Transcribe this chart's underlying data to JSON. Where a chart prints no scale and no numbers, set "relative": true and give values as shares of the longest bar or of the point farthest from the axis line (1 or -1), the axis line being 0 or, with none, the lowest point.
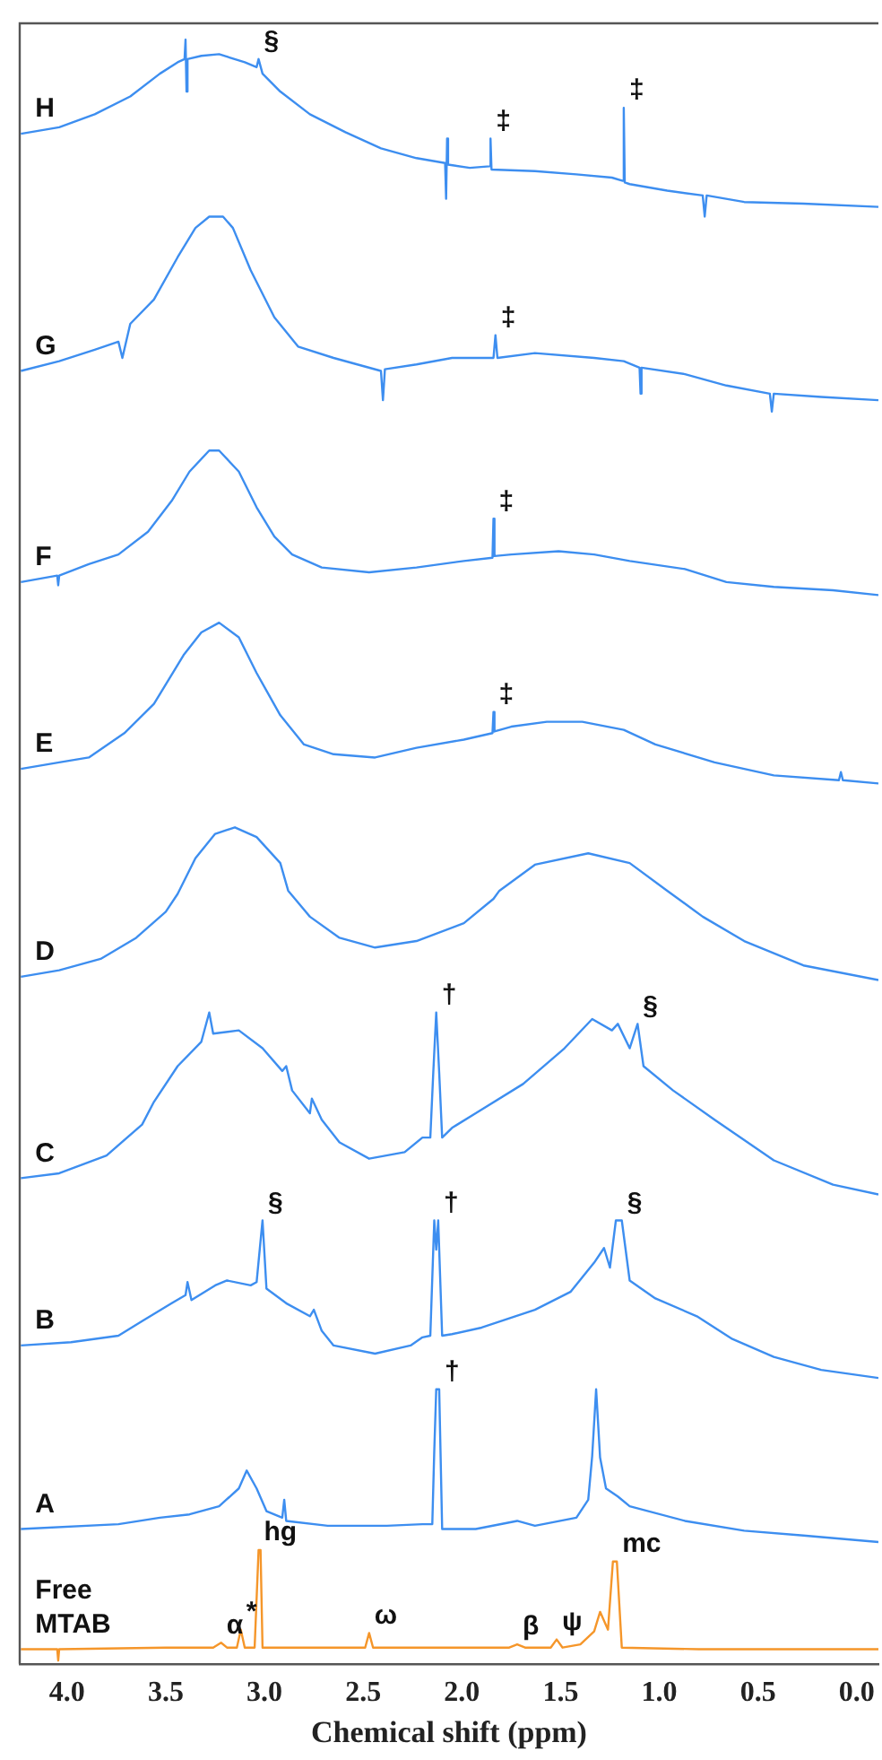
{
  "chart_data": {
    "type": "line",
    "relative": true,
    "xlabel": "Chemical shift (ppm)",
    "xlim": [
      4.24,
      -0.11
    ],
    "xticks": [
      {
        "value": 4,
        "label": "4.0"
      },
      {
        "value": 3.5,
        "label": "3.5"
      },
      {
        "value": 3,
        "label": "3.0"
      },
      {
        "value": 2.5,
        "label": "2.5"
      },
      {
        "value": 2,
        "label": "2.0"
      },
      {
        "value": 1.5,
        "label": "1.5"
      },
      {
        "value": 1,
        "label": "1.0"
      },
      {
        "value": 0.5,
        "label": "0.5"
      },
      {
        "value": 0,
        "label": "0.0"
      }
    ],
    "grid": false,
    "legend": false,
    "marker": "none",
    "line_style": "solid",
    "series": [
      {
        "name": "H",
        "color": "#3d8ef0",
        "x": [
          4.234,
          4.04,
          3.86,
          3.68,
          3.53,
          3.44,
          3.405,
          3.4,
          3.395,
          3.39,
          3.32,
          3.23,
          3.1,
          3.04,
          3.03,
          3.01,
          2.92,
          2.77,
          2.59,
          2.41,
          2.23,
          2.085,
          2.08,
          2.075,
          2.07,
          1.96,
          1.86,
          1.855,
          1.85,
          1.63,
          1.42,
          1.24,
          1.185,
          1.18,
          1.175,
          1.15,
          0.96,
          0.78,
          0.77,
          0.76,
          0.57,
          0.27,
          -0.11
        ],
        "values": [
          0.942,
          0.946,
          0.954,
          0.965,
          0.979,
          0.986,
          0.988,
          1.0,
          0.968,
          0.988,
          0.99,
          0.991,
          0.986,
          0.983,
          0.988,
          0.979,
          0.968,
          0.954,
          0.943,
          0.933,
          0.927,
          0.924,
          0.902,
          0.939,
          0.923,
          0.921,
          0.922,
          0.939,
          0.92,
          0.919,
          0.917,
          0.915,
          0.913,
          0.958,
          0.912,
          0.911,
          0.907,
          0.904,
          0.891,
          0.904,
          0.9,
          0.899,
          0.897
        ]
      },
      {
        "name": "G",
        "color": "#3d8ef0",
        "x": [
          4.234,
          4.04,
          3.86,
          3.74,
          3.72,
          3.68,
          3.56,
          3.44,
          3.35,
          3.28,
          3.21,
          3.16,
          3.07,
          2.95,
          2.83,
          2.65,
          2.41,
          2.4,
          2.39,
          2.23,
          2.05,
          1.84,
          1.83,
          1.82,
          1.63,
          1.33,
          1.18,
          1.1,
          1.095,
          1.09,
          0.87,
          0.66,
          0.44,
          0.43,
          0.42,
          0.18,
          -0.11
        ],
        "values": [
          0.796,
          0.802,
          0.809,
          0.814,
          0.804,
          0.825,
          0.84,
          0.866,
          0.884,
          0.891,
          0.891,
          0.884,
          0.858,
          0.829,
          0.811,
          0.804,
          0.796,
          0.778,
          0.797,
          0.8,
          0.804,
          0.804,
          0.818,
          0.804,
          0.807,
          0.804,
          0.802,
          0.798,
          0.782,
          0.798,
          0.794,
          0.787,
          0.782,
          0.771,
          0.782,
          0.78,
          0.778
        ]
      },
      {
        "name": "F",
        "color": "#3d8ef0",
        "x": [
          4.234,
          4.05,
          4.045,
          4.04,
          3.89,
          3.74,
          3.59,
          3.47,
          3.38,
          3.28,
          3.23,
          3.13,
          3.04,
          2.95,
          2.86,
          2.71,
          2.47,
          2.23,
          1.99,
          1.845,
          1.84,
          1.835,
          1.75,
          1.51,
          1.33,
          1.15,
          0.87,
          0.66,
          0.42,
          0.12,
          -0.11
        ],
        "values": [
          0.666,
          0.67,
          0.664,
          0.67,
          0.677,
          0.683,
          0.697,
          0.716,
          0.734,
          0.747,
          0.747,
          0.734,
          0.712,
          0.694,
          0.683,
          0.675,
          0.672,
          0.675,
          0.679,
          0.681,
          0.705,
          0.682,
          0.683,
          0.685,
          0.683,
          0.679,
          0.674,
          0.666,
          0.663,
          0.661,
          0.658
        ]
      },
      {
        "name": "E",
        "color": "#3d8ef0",
        "x": [
          4.234,
          4.04,
          3.89,
          3.71,
          3.56,
          3.41,
          3.32,
          3.23,
          3.13,
          3.04,
          2.92,
          2.8,
          2.65,
          2.44,
          2.23,
          1.99,
          1.845,
          1.84,
          1.835,
          1.75,
          1.57,
          1.39,
          1.18,
          1.02,
          0.72,
          0.42,
          0.09,
          0.08,
          0.07,
          -0.11
        ],
        "values": [
          0.551,
          0.555,
          0.558,
          0.573,
          0.591,
          0.621,
          0.635,
          0.641,
          0.632,
          0.61,
          0.584,
          0.566,
          0.56,
          0.558,
          0.564,
          0.569,
          0.573,
          0.586,
          0.574,
          0.577,
          0.58,
          0.58,
          0.575,
          0.566,
          0.555,
          0.547,
          0.544,
          0.549,
          0.544,
          0.542
        ]
      },
      {
        "name": "D",
        "color": "#3d8ef0",
        "x": [
          4.234,
          4.04,
          3.83,
          3.65,
          3.5,
          3.44,
          3.35,
          3.25,
          3.15,
          3.04,
          2.92,
          2.88,
          2.77,
          2.62,
          2.44,
          2.23,
          1.99,
          1.84,
          1.81,
          1.63,
          1.36,
          1.15,
          0.96,
          0.78,
          0.57,
          0.27,
          -0.11
        ],
        "values": [
          0.423,
          0.427,
          0.434,
          0.447,
          0.463,
          0.474,
          0.496,
          0.511,
          0.515,
          0.509,
          0.493,
          0.476,
          0.46,
          0.447,
          0.441,
          0.445,
          0.456,
          0.471,
          0.476,
          0.492,
          0.499,
          0.493,
          0.476,
          0.46,
          0.445,
          0.43,
          0.421
        ]
      },
      {
        "name": "C",
        "color": "#3d8ef0",
        "x": [
          4.234,
          4.04,
          3.8,
          3.62,
          3.56,
          3.44,
          3.32,
          3.28,
          3.26,
          3.13,
          3.01,
          2.91,
          2.89,
          2.86,
          2.77,
          2.76,
          2.71,
          2.62,
          2.47,
          2.29,
          2.2,
          2.16,
          2.145,
          2.13,
          2.115,
          2.1,
          2.05,
          1.93,
          1.69,
          1.48,
          1.34,
          1.24,
          1.21,
          1.15,
          1.11,
          1.08,
          0.93,
          0.72,
          0.42,
          0.12,
          -0.11
        ],
        "values": [
          0.299,
          0.302,
          0.313,
          0.332,
          0.346,
          0.368,
          0.383,
          0.401,
          0.388,
          0.39,
          0.379,
          0.365,
          0.368,
          0.353,
          0.339,
          0.348,
          0.335,
          0.321,
          0.311,
          0.315,
          0.324,
          0.324,
          0.364,
          0.401,
          0.364,
          0.324,
          0.33,
          0.339,
          0.357,
          0.379,
          0.397,
          0.39,
          0.394,
          0.379,
          0.394,
          0.368,
          0.353,
          0.335,
          0.31,
          0.295,
          0.289
        ]
      },
      {
        "name": "B",
        "color": "#3d8ef0",
        "x": [
          4.234,
          3.98,
          3.74,
          3.62,
          3.47,
          3.4,
          3.39,
          3.37,
          3.25,
          3.19,
          3.07,
          3.04,
          3.01,
          2.99,
          2.89,
          2.77,
          2.75,
          2.71,
          2.65,
          2.44,
          2.26,
          2.2,
          2.16,
          2.14,
          2.13,
          2.12,
          2.1,
          2.05,
          1.9,
          1.63,
          1.45,
          1.33,
          1.28,
          1.25,
          1.22,
          1.19,
          1.15,
          1.02,
          0.81,
          0.63,
          0.42,
          0.18,
          -0.11
        ],
        "values": [
          0.196,
          0.198,
          0.202,
          0.211,
          0.222,
          0.227,
          0.235,
          0.224,
          0.233,
          0.236,
          0.233,
          0.235,
          0.273,
          0.231,
          0.222,
          0.214,
          0.218,
          0.205,
          0.196,
          0.191,
          0.196,
          0.201,
          0.202,
          0.273,
          0.255,
          0.273,
          0.202,
          0.203,
          0.207,
          0.218,
          0.229,
          0.247,
          0.256,
          0.244,
          0.273,
          0.273,
          0.236,
          0.225,
          0.214,
          0.2,
          0.189,
          0.181,
          0.176
        ]
      },
      {
        "name": "A",
        "color": "#3d8ef0",
        "x": [
          4.234,
          3.74,
          3.53,
          3.38,
          3.23,
          3.13,
          3.09,
          3.04,
          2.99,
          2.91,
          2.9,
          2.89,
          2.68,
          2.38,
          2.2,
          2.15,
          2.14,
          2.13,
          2.115,
          2.1,
          1.93,
          1.72,
          1.63,
          1.42,
          1.36,
          1.34,
          1.32,
          1.3,
          1.27,
          1.21,
          1.15,
          0.87,
          0.57,
          0.27,
          -0.11
        ],
        "values": [
          0.083,
          0.086,
          0.09,
          0.092,
          0.097,
          0.108,
          0.119,
          0.108,
          0.094,
          0.09,
          0.101,
          0.088,
          0.085,
          0.085,
          0.086,
          0.086,
          0.131,
          0.169,
          0.169,
          0.083,
          0.083,
          0.088,
          0.085,
          0.09,
          0.101,
          0.128,
          0.169,
          0.127,
          0.108,
          0.103,
          0.097,
          0.088,
          0.082,
          0.079,
          0.075
        ]
      },
      {
        "name": "Free MTAB",
        "color": "#f5962a",
        "x": [
          4.234,
          4.05,
          4.045,
          4.04,
          3.5,
          3.26,
          3.22,
          3.19,
          3.14,
          3.12,
          3.1,
          3.05,
          3.03,
          3.02,
          3.01,
          2.7,
          2.49,
          2.47,
          2.45,
          2,
          1.76,
          1.72,
          1.68,
          1.55,
          1.52,
          1.49,
          1.4,
          1.33,
          1.3,
          1.26,
          1.235,
          1.215,
          1.19,
          0.8,
          -0.11
        ],
        "values": [
          0.009,
          0.009,
          0.002,
          0.009,
          0.01,
          0.01,
          0.013,
          0.01,
          0.01,
          0.021,
          0.01,
          0.01,
          0.07,
          0.07,
          0.01,
          0.01,
          0.01,
          0.019,
          0.01,
          0.01,
          0.01,
          0.012,
          0.01,
          0.01,
          0.015,
          0.01,
          0.012,
          0.02,
          0.032,
          0.021,
          0.063,
          0.063,
          0.01,
          0.009,
          0.009
        ]
      }
    ],
    "annotations": [
      {
        "text": "§",
        "x": 3.03,
        "y": 0.988
      },
      {
        "text": "‡",
        "x": 1.855,
        "y": 0.939
      },
      {
        "text": "‡",
        "x": 1.18,
        "y": 0.958
      },
      {
        "text": "‡",
        "x": 1.83,
        "y": 0.818
      },
      {
        "text": "‡",
        "x": 1.84,
        "y": 0.705
      },
      {
        "text": "‡",
        "x": 1.84,
        "y": 0.586
      },
      {
        "text": "†",
        "x": 2.13,
        "y": 0.401
      },
      {
        "text": "§",
        "x": 1.11,
        "y": 0.394
      },
      {
        "text": "§",
        "x": 3.01,
        "y": 0.273
      },
      {
        "text": "†",
        "x": 2.12,
        "y": 0.273
      },
      {
        "text": "§",
        "x": 1.19,
        "y": 0.273
      },
      {
        "text": "†",
        "x": 2.115,
        "y": 0.169
      },
      {
        "text": "α",
        "x": 3.22,
        "y": 0.013
      },
      {
        "text": "*",
        "x": 3.12,
        "y": 0.021
      },
      {
        "text": "hg",
        "x": 3.03,
        "y": 0.07
      },
      {
        "text": "ω",
        "x": 2.47,
        "y": 0.019
      },
      {
        "text": "β",
        "x": 1.72,
        "y": 0.012
      },
      {
        "text": "ψ",
        "x": 1.52,
        "y": 0.015
      },
      {
        "text": "mc",
        "x": 1.215,
        "y": 0.063
      }
    ]
  }
}
